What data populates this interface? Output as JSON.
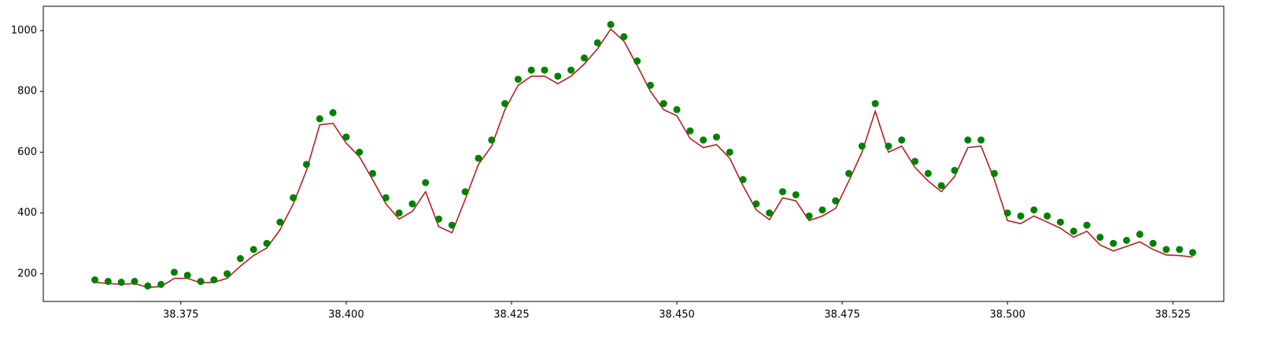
{
  "chart_data": {
    "type": "line",
    "x": [
      38.362,
      38.364,
      38.366,
      38.368,
      38.37,
      38.372,
      38.374,
      38.376,
      38.378,
      38.38,
      38.382,
      38.384,
      38.386,
      38.388,
      38.39,
      38.392,
      38.394,
      38.396,
      38.398,
      38.4,
      38.402,
      38.404,
      38.406,
      38.408,
      38.41,
      38.412,
      38.414,
      38.416,
      38.418,
      38.42,
      38.422,
      38.424,
      38.426,
      38.428,
      38.43,
      38.432,
      38.434,
      38.436,
      38.438,
      38.44,
      38.442,
      38.444,
      38.446,
      38.448,
      38.45,
      38.452,
      38.454,
      38.456,
      38.458,
      38.46,
      38.462,
      38.464,
      38.466,
      38.468,
      38.47,
      38.472,
      38.474,
      38.476,
      38.478,
      38.48,
      38.482,
      38.484,
      38.486,
      38.488,
      38.49,
      38.492,
      38.494,
      38.496,
      38.498,
      38.5,
      38.502,
      38.504,
      38.506,
      38.508,
      38.51,
      38.512,
      38.514,
      38.516,
      38.518,
      38.52,
      38.522,
      38.524,
      38.526,
      38.528
    ],
    "series": [
      {
        "mode": "line",
        "color": "#b22222",
        "values": [
          172,
          168,
          165,
          168,
          155,
          158,
          185,
          185,
          170,
          172,
          185,
          225,
          260,
          285,
          345,
          430,
          540,
          690,
          695,
          630,
          585,
          510,
          430,
          380,
          405,
          470,
          355,
          335,
          445,
          560,
          620,
          740,
          820,
          850,
          850,
          825,
          850,
          890,
          940,
          1005,
          965,
          885,
          800,
          740,
          720,
          645,
          615,
          625,
          580,
          490,
          410,
          378,
          450,
          440,
          375,
          390,
          415,
          505,
          600,
          735,
          600,
          620,
          550,
          505,
          470,
          520,
          615,
          620,
          510,
          375,
          365,
          390,
          370,
          350,
          320,
          340,
          295,
          275,
          290,
          305,
          280,
          262,
          260,
          255
        ]
      },
      {
        "mode": "markers",
        "color": "#008000",
        "values": [
          180,
          175,
          172,
          175,
          160,
          165,
          205,
          195,
          175,
          180,
          200,
          250,
          280,
          300,
          370,
          450,
          560,
          710,
          730,
          650,
          600,
          530,
          450,
          400,
          430,
          500,
          380,
          360,
          470,
          580,
          640,
          760,
          840,
          870,
          870,
          850,
          870,
          910,
          960,
          1020,
          980,
          900,
          820,
          760,
          740,
          670,
          640,
          650,
          600,
          510,
          430,
          400,
          470,
          460,
          390,
          410,
          440,
          530,
          620,
          760,
          620,
          640,
          570,
          530,
          490,
          540,
          640,
          640,
          530,
          400,
          390,
          410,
          390,
          370,
          340,
          360,
          320,
          300,
          310,
          330,
          300,
          280,
          280,
          270
        ]
      }
    ],
    "xlim": [
      38.3542,
      38.5327
    ],
    "ylim": [
      109,
      1080
    ],
    "xticks": [
      38.375,
      {
        "value": 38.4,
        "label": "38.400"
      },
      38.425,
      {
        "value": 38.45,
        "label": "38.450"
      },
      38.475,
      {
        "value": 38.5,
        "label": "38.500"
      },
      38.525
    ],
    "yticks": [
      200,
      400,
      600,
      800,
      1000
    ]
  }
}
